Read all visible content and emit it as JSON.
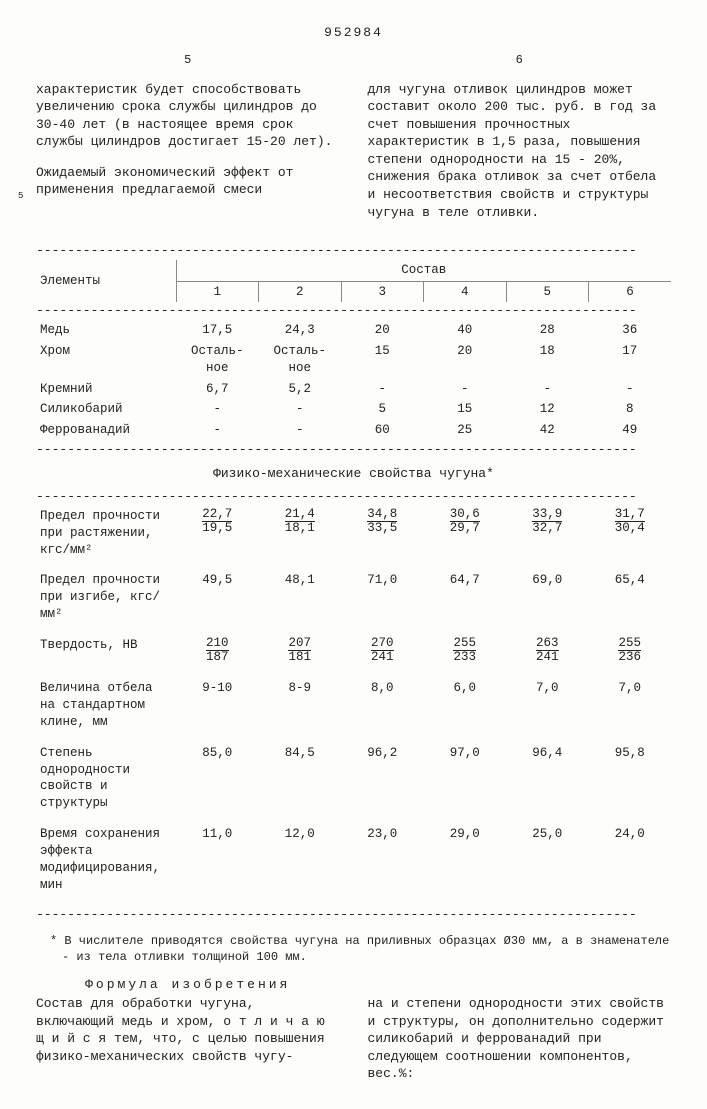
{
  "doc_number": "952984",
  "col_left_num": "5",
  "col_right_num": "6",
  "side_num_5": "5",
  "text_left_1": "характеристик будет способствовать увеличению срока службы цилиндров до 30-40 лет (в настоящее время срок службы цилиндров достигает 15-20 лет).",
  "text_left_2": "Ожидаемый экономический эффект от применения предлагаемой смеси",
  "text_right_1": "для чугуна отливок цилиндров может составит около 200 тыс. руб. в год за счет повышения прочностных характеристик в 1,5 раза, повышения степени однородности на 15 - 20%, снижения брака отливок за счет отбела и несоответствия свойств и структуры чугуна в теле отливки.",
  "table1": {
    "header_elements": "Элементы",
    "header_sostav": "Состав",
    "cols": [
      "1",
      "2",
      "3",
      "4",
      "5",
      "6"
    ],
    "rows": [
      {
        "label": "Медь",
        "v": [
          "17,5",
          "24,3",
          "20",
          "40",
          "28",
          "36"
        ]
      },
      {
        "label": "Хром",
        "v": [
          "Осталь-\nное",
          "Осталь-\nное",
          "15",
          "20",
          "18",
          "17"
        ]
      },
      {
        "label": "Кремний",
        "v": [
          "6,7",
          "5,2",
          "-",
          "-",
          "-",
          "-"
        ]
      },
      {
        "label": "Силикобарий",
        "v": [
          "-",
          "-",
          "5",
          "15",
          "12",
          "8"
        ]
      },
      {
        "label": "Феррованадий",
        "v": [
          "-",
          "-",
          "60",
          "25",
          "42",
          "49"
        ]
      }
    ]
  },
  "table2_title": "Физико-механические свойства чугуна*",
  "table2": {
    "rows": [
      {
        "label": "Предел прочности при растяжении, кгс/мм²",
        "frac": [
          [
            "22,7",
            "19,5"
          ],
          [
            "21,4",
            "18,1"
          ],
          [
            "34,8",
            "33,5"
          ],
          [
            "30,6",
            "29,7"
          ],
          [
            "33,9",
            "32,7"
          ],
          [
            "31,7",
            "30,4"
          ]
        ]
      },
      {
        "label": "Предел прочности при изгибе, кгс/мм²",
        "v": [
          "49,5",
          "48,1",
          "71,0",
          "64,7",
          "69,0",
          "65,4"
        ]
      },
      {
        "label": "Твердость, НВ",
        "frac": [
          [
            "210",
            "187"
          ],
          [
            "207",
            "181"
          ],
          [
            "270",
            "241"
          ],
          [
            "255",
            "233"
          ],
          [
            "263",
            "241"
          ],
          [
            "255",
            "236"
          ]
        ]
      },
      {
        "label": "Величина отбела на стандартном клине, мм",
        "v": [
          "9-10",
          "8-9",
          "8,0",
          "6,0",
          "7,0",
          "7,0"
        ]
      },
      {
        "label": "Степень однородности свойств и структуры",
        "v": [
          "85,0",
          "84,5",
          "96,2",
          "97,0",
          "96,4",
          "95,8"
        ]
      },
      {
        "label": "Время сохранения эффекта модифицирования, мин",
        "v": [
          "11,0",
          "12,0",
          "23,0",
          "29,0",
          "25,0",
          "24,0"
        ]
      }
    ]
  },
  "footnote": "* В числителе приводятся свойства чугуна на приливных образцах Ø30 мм, а в знаменателе - из тела отливки толщиной 100 мм.",
  "formula_title": "Формула изобретения",
  "formula_left": "Состав для обработки чугуна, включающий медь и хром, о т л и ч а ю щ и й с я тем, что, с целью повышения физико-механических свойств чугу-",
  "formula_right": "на и степени однородности этих свойств и структуры, он дополнительно содержит силикобарий и феррованадий при следующем соотношении компонентов, вес.%:",
  "dash": "-----------------------------------------------------------------------------"
}
